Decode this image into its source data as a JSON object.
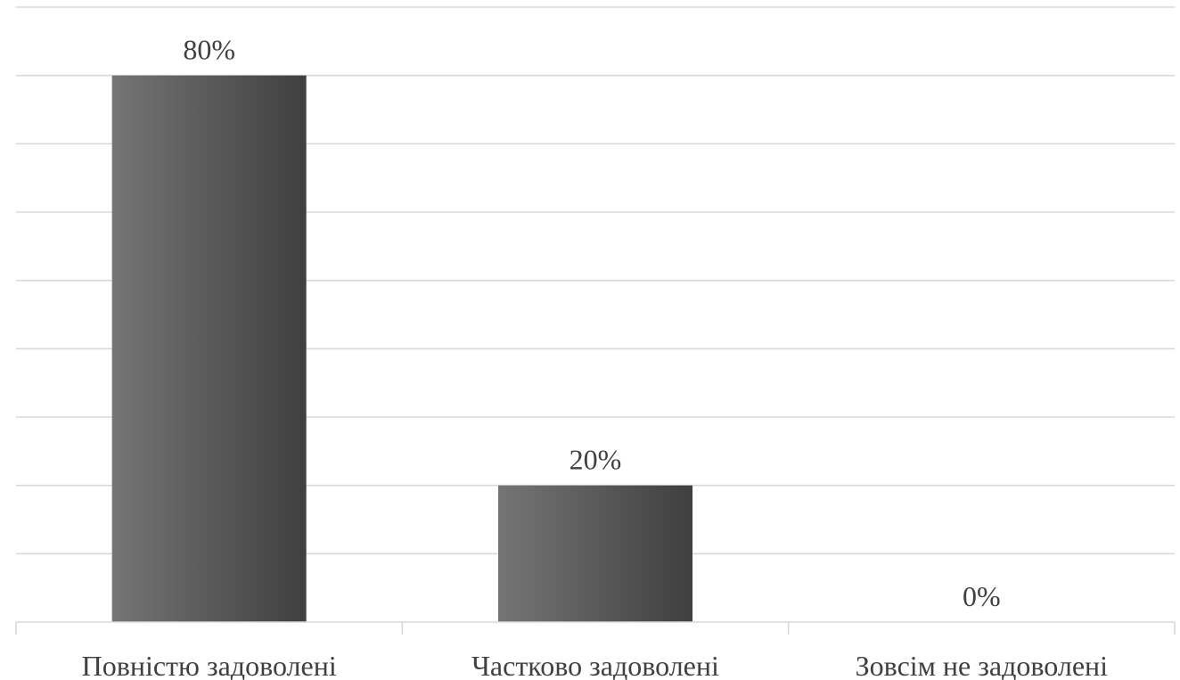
{
  "chart_data": {
    "type": "bar",
    "title": "",
    "xlabel": "",
    "ylabel": "",
    "categories": [
      "Повністю задоволені",
      "Частково задоволені",
      "Зовсім не задоволені"
    ],
    "values": [
      80,
      20,
      0
    ],
    "data_labels": [
      "80%",
      "20%",
      "0%"
    ],
    "unit": "%",
    "ylim": [
      0,
      90
    ],
    "ytick_step": 10,
    "grid": true,
    "legend": "none",
    "y_tick_labels_visible": false,
    "bar_gradient": [
      "#757575",
      "#3f3f3f"
    ]
  }
}
